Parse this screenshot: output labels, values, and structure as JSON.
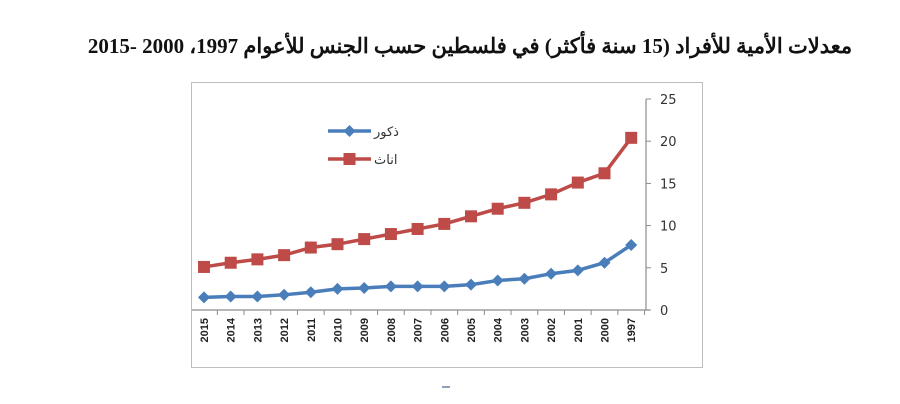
{
  "title": "معدلات الأمية للأفراد (15 سنة فأكثر) في فلسطين حسب الجنس للأعوام 1997، 2000 -2015",
  "chart_data": {
    "type": "line",
    "title": "معدلات الأمية للأفراد (15 سنة فأكثر) في فلسطين حسب الجنس للأعوام 1997، 2000 -2015",
    "xlabel": "",
    "ylabel": "",
    "categories": [
      "2015",
      "2014",
      "2013",
      "2012",
      "2011",
      "2010",
      "2009",
      "2008",
      "2007",
      "2006",
      "2005",
      "2004",
      "2003",
      "2002",
      "2001",
      "2000",
      "1997"
    ],
    "series": [
      {
        "name": "ذكور",
        "color": "#4a7ebb",
        "marker": "diamond",
        "values": [
          1.5,
          1.6,
          1.6,
          1.8,
          2.1,
          2.5,
          2.6,
          2.8,
          2.8,
          2.8,
          3.0,
          3.5,
          3.7,
          4.3,
          4.7,
          5.6,
          7.7
        ]
      },
      {
        "name": "اناث",
        "color": "#be4b48",
        "marker": "square",
        "values": [
          5.1,
          5.6,
          6.0,
          6.5,
          7.4,
          7.8,
          8.4,
          9.0,
          9.6,
          10.2,
          11.1,
          12.0,
          12.7,
          13.7,
          15.1,
          16.2,
          20.4
        ]
      }
    ],
    "ylim": [
      0,
      25
    ],
    "yticks": [
      0,
      5,
      10,
      15,
      20,
      25
    ],
    "y_axis_position": "right",
    "x_tick_rotation": -90,
    "grid": false,
    "legend_position": "upper-left-inside",
    "legend": [
      "ذكور",
      "اناث"
    ]
  }
}
